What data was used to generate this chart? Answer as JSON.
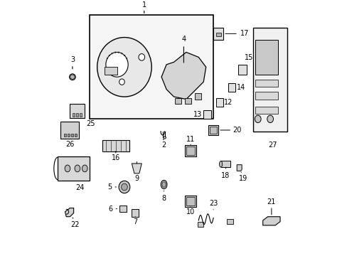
{
  "title": "",
  "background_color": "#ffffff",
  "border_color": "#000000",
  "line_color": "#000000",
  "text_color": "#000000",
  "fs": 7
}
